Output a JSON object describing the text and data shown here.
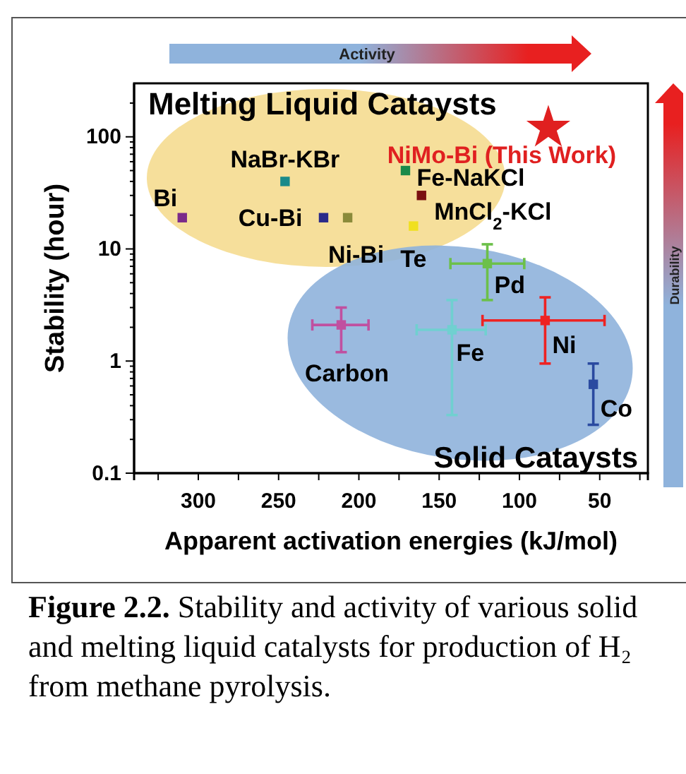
{
  "chart_data": {
    "type": "scatter",
    "xlabel": "Apparent activation energies (kJ/mol)",
    "ylabel": "Stability (hour)",
    "xlim": [
      340,
      20
    ],
    "ylim": [
      0.1,
      300
    ],
    "log": "y",
    "grid": false,
    "marker": "square",
    "xticks": [
      {
        "value": 325,
        "label": null
      },
      300,
      {
        "value": 275,
        "label": null
      },
      250,
      {
        "value": 225,
        "label": null
      },
      200,
      {
        "value": 175,
        "label": null
      },
      150,
      {
        "value": 125,
        "label": null
      },
      100,
      {
        "value": 75,
        "label": null
      },
      50,
      {
        "value": 25,
        "label": null
      }
    ],
    "yticks": [
      0.1,
      {
        "value": 0.2,
        "label": null
      },
      {
        "value": 0.3,
        "label": null
      },
      {
        "value": 0.4,
        "label": null
      },
      {
        "value": 0.5,
        "label": null
      },
      {
        "value": 0.6,
        "label": null
      },
      {
        "value": 0.7,
        "label": null
      },
      {
        "value": 0.8,
        "label": null
      },
      {
        "value": 0.9,
        "label": null
      },
      1,
      {
        "value": 2,
        "label": null
      },
      {
        "value": 3,
        "label": null
      },
      {
        "value": 4,
        "label": null
      },
      {
        "value": 5,
        "label": null
      },
      {
        "value": 6,
        "label": null
      },
      {
        "value": 7,
        "label": null
      },
      {
        "value": 8,
        "label": null
      },
      {
        "value": 9,
        "label": null
      },
      10,
      {
        "value": 20,
        "label": null
      },
      {
        "value": 30,
        "label": null
      },
      {
        "value": 40,
        "label": null
      },
      {
        "value": 50,
        "label": null
      },
      {
        "value": 60,
        "label": null
      },
      {
        "value": 70,
        "label": null
      },
      {
        "value": 80,
        "label": null
      },
      {
        "value": 90,
        "label": null
      },
      100,
      {
        "value": 200,
        "label": null
      }
    ],
    "series": [
      {
        "name": "Bi",
        "color": "#7b2a8a",
        "x": [
          310
        ],
        "values": [
          19
        ]
      },
      {
        "name": "NaBr-KBr",
        "color": "#1a8a8a",
        "x": [
          246
        ],
        "values": [
          40
        ]
      },
      {
        "name": "Cu-Bi",
        "color": "#2a2a8a",
        "x": [
          222
        ],
        "values": [
          19
        ]
      },
      {
        "name": "Ni-Bi",
        "color": "#8a8a3a",
        "x": [
          207
        ],
        "values": [
          19
        ]
      },
      {
        "name": "Fe-NaKCl",
        "color": "#1a8a4a",
        "x": [
          171
        ],
        "values": [
          50
        ]
      },
      {
        "name": "MnCl$_{2}$-KCl",
        "color": "#7a1010",
        "x": [
          161
        ],
        "values": [
          30
        ]
      },
      {
        "name": "Te",
        "color": "#f0e020",
        "x": [
          166
        ],
        "values": [
          16
        ]
      },
      {
        "name": "NiMo-Bi (This Work)",
        "color": "#e02020",
        "marker": "star",
        "x": [
          82
        ],
        "values": [
          120
        ]
      },
      {
        "name": "Pd",
        "color": "#6cc04a",
        "x": [
          120
        ],
        "values": [
          7.4
        ],
        "errors": [
          [
            3.5,
            11
          ]
        ],
        "xerrors": [
          [
            143,
            97
          ]
        ]
      },
      {
        "name": "Carbon",
        "color": "#c050a0",
        "x": [
          211
        ],
        "values": [
          2.1
        ],
        "errors": [
          [
            1.2,
            3
          ]
        ],
        "xerrors": [
          [
            229,
            194
          ]
        ]
      },
      {
        "name": "Fe",
        "color": "#70d0d0",
        "x": [
          142
        ],
        "values": [
          1.9
        ],
        "errors": [
          [
            0.33,
            3.5
          ]
        ],
        "xerrors": [
          [
            164,
            121
          ]
        ]
      },
      {
        "name": "Ni",
        "color": "#ee2222",
        "x": [
          84
        ],
        "values": [
          2.3
        ],
        "errors": [
          [
            0.95,
            3.7
          ]
        ],
        "xerrors": [
          [
            123,
            47
          ]
        ]
      },
      {
        "name": "Co",
        "color": "#2a4aa0",
        "x": [
          54
        ],
        "values": [
          0.62
        ],
        "errors": [
          [
            0.27,
            0.95
          ]
        ]
      }
    ],
    "annotations": [
      "Melting Liquid Cataysts",
      "Solid Cataysts",
      "Activity",
      "Durability",
      "Figure 2.2. Stability and activity of various solid and melting liquid catalysts for production of H₂ from methane pyrolysis."
    ]
  }
}
